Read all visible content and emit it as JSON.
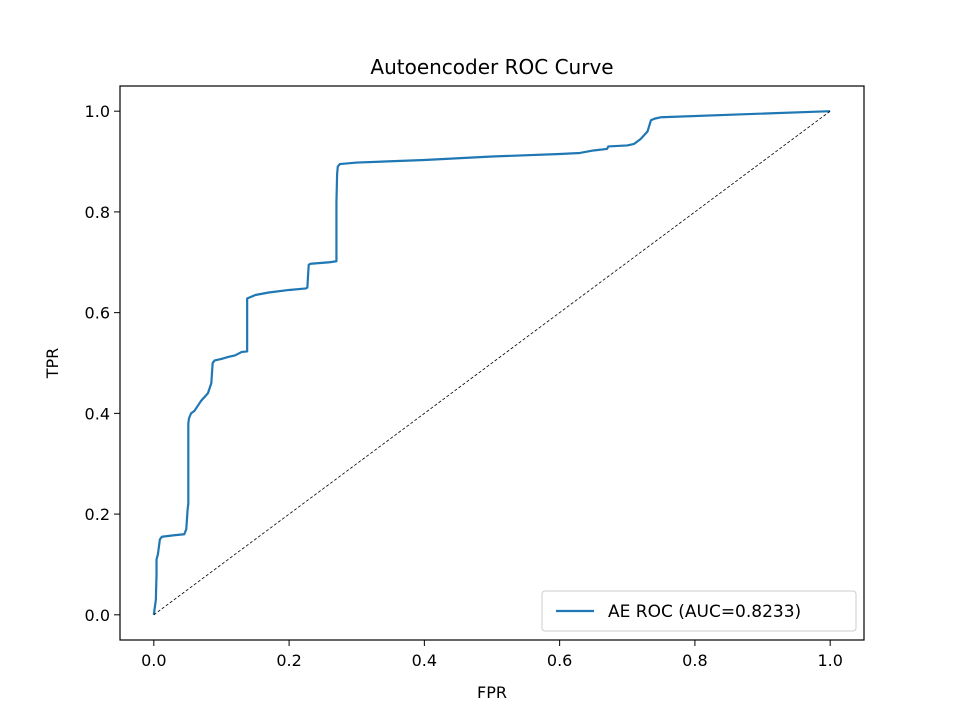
{
  "chart_data": {
    "type": "line",
    "title": "Autoencoder ROC Curve",
    "xlabel": "FPR",
    "ylabel": "TPR",
    "xlim": [
      -0.05,
      1.05
    ],
    "ylim": [
      -0.05,
      1.05
    ],
    "xticks": [
      0.0,
      0.2,
      0.4,
      0.6,
      0.8,
      1.0
    ],
    "yticks": [
      0.0,
      0.2,
      0.4,
      0.6,
      0.8,
      1.0
    ],
    "xtick_labels": [
      "0.0",
      "0.2",
      "0.4",
      "0.6",
      "0.8",
      "1.0"
    ],
    "ytick_labels": [
      "0.0",
      "0.2",
      "0.4",
      "0.6",
      "0.8",
      "1.0"
    ],
    "grid": false,
    "legend_position": "lower-right",
    "series": [
      {
        "name": "AE ROC (AUC=0.8233)",
        "color": "#1f77b4",
        "style": "solid",
        "x": [
          0.0,
          0.003,
          0.004,
          0.004,
          0.006,
          0.007,
          0.008,
          0.009,
          0.012,
          0.03,
          0.045,
          0.048,
          0.05,
          0.051,
          0.051,
          0.052,
          0.055,
          0.06,
          0.065,
          0.07,
          0.08,
          0.085,
          0.087,
          0.09,
          0.1,
          0.11,
          0.12,
          0.13,
          0.138,
          0.138,
          0.15,
          0.17,
          0.2,
          0.225,
          0.227,
          0.229,
          0.232,
          0.26,
          0.27,
          0.27,
          0.271,
          0.272,
          0.275,
          0.3,
          0.4,
          0.5,
          0.6,
          0.63,
          0.65,
          0.67,
          0.672,
          0.7,
          0.71,
          0.72,
          0.73,
          0.735,
          0.74,
          0.75,
          1.0
        ],
        "y": [
          0.0,
          0.03,
          0.08,
          0.11,
          0.12,
          0.13,
          0.14,
          0.15,
          0.155,
          0.158,
          0.16,
          0.17,
          0.21,
          0.22,
          0.38,
          0.39,
          0.4,
          0.405,
          0.415,
          0.425,
          0.44,
          0.46,
          0.5,
          0.505,
          0.508,
          0.512,
          0.515,
          0.522,
          0.523,
          0.628,
          0.635,
          0.64,
          0.645,
          0.648,
          0.65,
          0.695,
          0.697,
          0.7,
          0.702,
          0.82,
          0.875,
          0.89,
          0.895,
          0.898,
          0.903,
          0.91,
          0.915,
          0.917,
          0.922,
          0.925,
          0.93,
          0.932,
          0.935,
          0.945,
          0.96,
          0.982,
          0.985,
          0.988,
          1.0
        ]
      },
      {
        "color": "#000000",
        "style": "dashed",
        "x": [
          0.0,
          1.0
        ],
        "y": [
          0.0,
          1.0
        ]
      }
    ]
  }
}
